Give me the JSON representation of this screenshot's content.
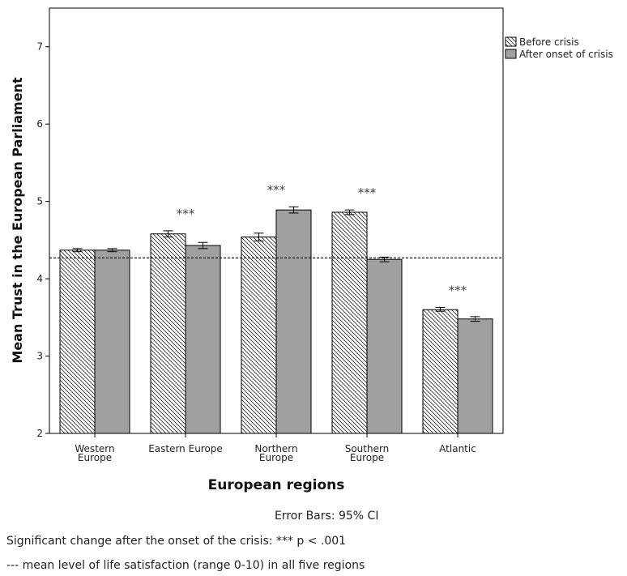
{
  "chart_data": {
    "type": "bar",
    "ylabel": "Mean Trust in the European Parliament",
    "xlabel": "European regions",
    "ylim": [
      2,
      7.5
    ],
    "yticks": [
      2,
      3,
      4,
      5,
      6,
      7
    ],
    "categories": [
      "Western\nEurope",
      "Eastern Europe",
      "Northern\nEurope",
      "Southern\nEurope",
      "Atlantic"
    ],
    "series": [
      {
        "name": "Before crisis",
        "fill": "hatched",
        "values": [
          4.37,
          4.58,
          4.54,
          4.86,
          3.6
        ],
        "ci": [
          [
            4.35,
            4.39
          ],
          [
            4.54,
            4.62
          ],
          [
            4.49,
            4.59
          ],
          [
            4.83,
            4.89
          ],
          [
            3.58,
            3.63
          ]
        ]
      },
      {
        "name": "After onset of crisis",
        "fill": "#a0a0a0",
        "values": [
          4.37,
          4.43,
          4.89,
          4.25,
          3.48
        ],
        "ci": [
          [
            4.35,
            4.39
          ],
          [
            4.39,
            4.47
          ],
          [
            4.85,
            4.93
          ],
          [
            4.22,
            4.28
          ],
          [
            3.45,
            3.51
          ]
        ]
      }
    ],
    "significance": [
      "",
      "***",
      "***",
      "***",
      "***"
    ],
    "reference_line": 4.27,
    "legend_position": "top-right",
    "grid": false
  },
  "notes": {
    "error_bars": "Error Bars: 95% CI",
    "significance": "Significant change after the onset of the crisis: *** p < .001",
    "reference_line": "--- mean level of life satisfaction (range 0-10) in all five regions"
  },
  "colors": {
    "after_fill": "#a0a0a0",
    "bar_stroke": "#000000",
    "hatch": "#333333"
  }
}
